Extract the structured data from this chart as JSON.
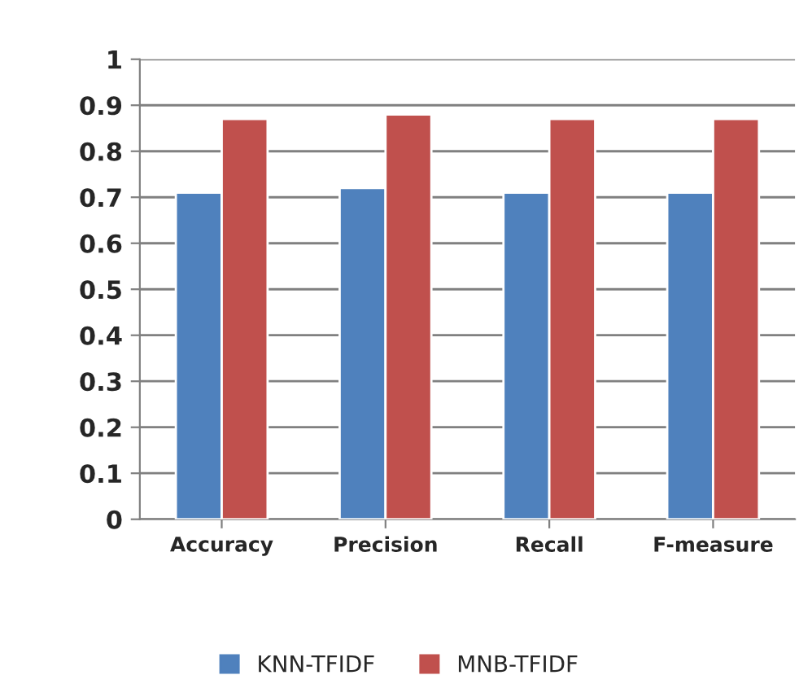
{
  "chart_data": {
    "type": "bar",
    "categories": [
      "Accuracy",
      "Precision",
      "Recall",
      "F-measure"
    ],
    "series": [
      {
        "name": "KNN-TFIDF",
        "color": "#4f81bd",
        "values": [
          0.71,
          0.72,
          0.71,
          0.71
        ]
      },
      {
        "name": "MNB-TFIDF",
        "color": "#c0504d",
        "values": [
          0.87,
          0.88,
          0.87,
          0.87
        ]
      }
    ],
    "ylim": [
      0,
      1
    ],
    "yticks": [
      0,
      0.1,
      0.2,
      0.3,
      0.4,
      0.5,
      0.6,
      0.7,
      0.8,
      0.9,
      1
    ],
    "grid": "y",
    "legend": "bottom"
  }
}
